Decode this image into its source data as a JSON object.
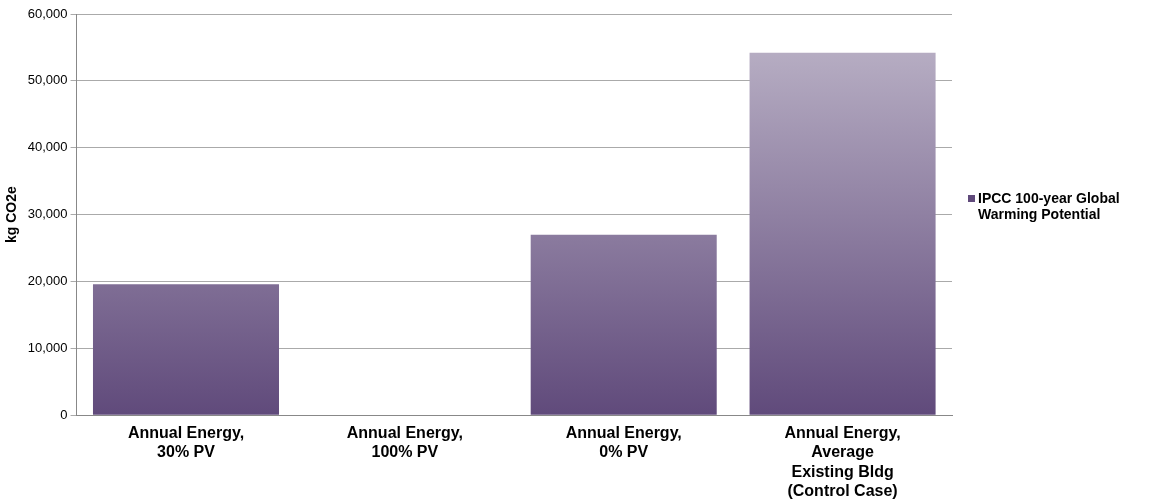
{
  "chart_data": {
    "type": "bar",
    "ylabel": "kg CO2e",
    "categories": [
      "Annual Energy, 30% PV",
      "Annual Energy, 100% PV",
      "Annual Energy, 0% PV",
      "Annual Energy, Average Existing Bldg (Control Case)"
    ],
    "series": [
      {
        "name": "IPCC 100-year Global Warming Potential",
        "color": "#604a7b",
        "values": [
          19600,
          0,
          27000,
          54200
        ]
      }
    ],
    "ylim": [
      0,
      60000
    ],
    "yticks": [
      {
        "value": 0,
        "label": "0"
      },
      {
        "value": 10000,
        "label": "10,000"
      },
      {
        "value": 20000,
        "label": "20,000"
      },
      {
        "value": 30000,
        "label": "30,000"
      },
      {
        "value": 40000,
        "label": "40,000"
      },
      {
        "value": 50000,
        "label": "50,000"
      },
      {
        "value": 60000,
        "label": "60,000"
      }
    ],
    "grid": "y",
    "legend": "right"
  }
}
